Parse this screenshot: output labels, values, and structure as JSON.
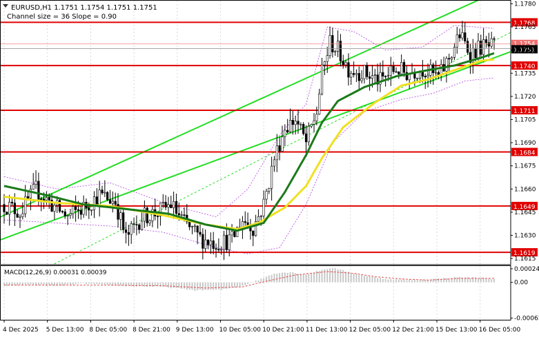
{
  "chart_data": {
    "type": "candlestick",
    "symbol_header": "EURUSD,H1  1.1751 1.1754 1.1751 1.1751",
    "channel_label": "Channel size = 36 Slope = 0.90",
    "price_ticks": [
      "1.1780",
      "1.1765",
      "1.1750",
      "1.1735",
      "1.1720",
      "1.1705",
      "1.1690",
      "1.1675",
      "1.1660",
      "1.1645",
      "1.1630",
      "1.1615"
    ],
    "price_range": [
      1.1611,
      1.1782
    ],
    "time_ticks": [
      "4 Dec 2025",
      "5 Dec 13:00",
      "8 Dec 05:00",
      "8 Dec 21:00",
      "9 Dec 13:00",
      "10 Dec 05:00",
      "10 Dec 21:00",
      "11 Dec 13:00",
      "12 Dec 05:00",
      "12 Dec 21:00",
      "15 Dec 13:00",
      "16 Dec 05:00"
    ],
    "levels": [
      {
        "label": "1.1768",
        "value": 1.1768
      },
      {
        "label": "1.1740",
        "value": 1.174
      },
      {
        "label": "1.1711",
        "value": 1.1711
      },
      {
        "label": "1.1684",
        "value": 1.1684
      },
      {
        "label": "1.1649",
        "value": 1.1649
      },
      {
        "label": "1.1619",
        "value": 1.1619
      }
    ],
    "current_price": {
      "label": "1.1751",
      "value": 1.1751
    },
    "ask_price": {
      "label": "1.1754",
      "value": 1.1754
    },
    "price_anchors": [
      [
        0,
        1.165
      ],
      [
        6,
        1.1645
      ],
      [
        12,
        1.166
      ],
      [
        18,
        1.165
      ],
      [
        24,
        1.1642
      ],
      [
        30,
        1.1648
      ],
      [
        36,
        1.1656
      ],
      [
        42,
        1.1652
      ],
      [
        46,
        1.1628
      ],
      [
        52,
        1.1642
      ],
      [
        58,
        1.1645
      ],
      [
        63,
        1.165
      ],
      [
        68,
        1.1638
      ],
      [
        74,
        1.1628
      ],
      [
        80,
        1.1625
      ],
      [
        86,
        1.1627
      ],
      [
        90,
        1.164
      ],
      [
        94,
        1.1635
      ],
      [
        98,
        1.165
      ],
      [
        102,
        1.168
      ],
      [
        106,
        1.17
      ],
      [
        110,
        1.1705
      ],
      [
        114,
        1.169
      ],
      [
        118,
        1.171
      ],
      [
        120,
        1.1735
      ],
      [
        123,
        1.1755
      ],
      [
        126,
        1.175
      ],
      [
        130,
        1.1738
      ],
      [
        136,
        1.1735
      ],
      [
        142,
        1.173
      ],
      [
        148,
        1.1738
      ],
      [
        152,
        1.1735
      ],
      [
        158,
        1.1738
      ],
      [
        164,
        1.1732
      ],
      [
        168,
        1.1745
      ],
      [
        172,
        1.176
      ],
      [
        176,
        1.1748
      ],
      [
        180,
        1.1752
      ],
      [
        185,
        1.1752
      ]
    ],
    "ma_slow_anchors": [
      [
        0,
        1.1662
      ],
      [
        16,
        1.1656
      ],
      [
        30,
        1.165
      ],
      [
        46,
        1.1647
      ],
      [
        62,
        1.1644
      ],
      [
        76,
        1.1637
      ],
      [
        88,
        1.1633
      ],
      [
        98,
        1.1638
      ],
      [
        106,
        1.1658
      ],
      [
        114,
        1.1682
      ],
      [
        120,
        1.1703
      ],
      [
        126,
        1.1717
      ],
      [
        136,
        1.1726
      ],
      [
        148,
        1.1733
      ],
      [
        160,
        1.1737
      ],
      [
        170,
        1.174
      ],
      [
        180,
        1.1745
      ],
      [
        185,
        1.1748
      ]
    ],
    "ma_fast_anchors": [
      [
        0,
        1.1655
      ],
      [
        20,
        1.1651
      ],
      [
        40,
        1.1649
      ],
      [
        60,
        1.1643
      ],
      [
        76,
        1.1637
      ],
      [
        88,
        1.1634
      ],
      [
        96,
        1.1638
      ],
      [
        106,
        1.1648
      ],
      [
        114,
        1.1662
      ],
      [
        120,
        1.168
      ],
      [
        128,
        1.17
      ],
      [
        140,
        1.1716
      ],
      [
        150,
        1.1727
      ],
      [
        160,
        1.1731
      ],
      [
        170,
        1.1737
      ],
      [
        180,
        1.1743
      ],
      [
        185,
        1.1744
      ]
    ],
    "envelope_upper_anchors": [
      [
        0,
        1.1668
      ],
      [
        20,
        1.166
      ],
      [
        40,
        1.1664
      ],
      [
        62,
        1.165
      ],
      [
        80,
        1.1642
      ],
      [
        92,
        1.166
      ],
      [
        104,
        1.1695
      ],
      [
        114,
        1.1715
      ],
      [
        122,
        1.1765
      ],
      [
        132,
        1.1762
      ],
      [
        144,
        1.175
      ],
      [
        158,
        1.1752
      ],
      [
        170,
        1.1766
      ],
      [
        185,
        1.1764
      ]
    ],
    "envelope_lower_anchors": [
      [
        0,
        1.164
      ],
      [
        20,
        1.1638
      ],
      [
        40,
        1.1636
      ],
      [
        60,
        1.1632
      ],
      [
        80,
        1.1622
      ],
      [
        92,
        1.1618
      ],
      [
        104,
        1.1622
      ],
      [
        114,
        1.165
      ],
      [
        124,
        1.169
      ],
      [
        136,
        1.171
      ],
      [
        150,
        1.1718
      ],
      [
        162,
        1.1722
      ],
      [
        174,
        1.173
      ],
      [
        185,
        1.1732
      ]
    ],
    "channel": {
      "upper_start": [
        0,
        1.1643
      ],
      "upper_end": [
        185,
        1.1787
      ],
      "mid_start": [
        0,
        1.1595
      ],
      "mid_end": [
        185,
        1.1756
      ],
      "lower_start": [
        0,
        1.1628
      ],
      "lower_end": [
        185,
        1.1745
      ]
    },
    "candles_count": 186,
    "indicator": {
      "label": "MACD(12,26,9) 0.00031 0.00039",
      "ticks": [
        "0.00024",
        "0.00",
        "-0.00063"
      ],
      "range": [
        -0.00066,
        0.0003
      ],
      "hist_anchors": [
        [
          0,
          -6e-05
        ],
        [
          10,
          -4e-05
        ],
        [
          20,
          -6e-05
        ],
        [
          30,
          -2e-05
        ],
        [
          40,
          -5e-05
        ],
        [
          50,
          -7e-05
        ],
        [
          60,
          -8e-05
        ],
        [
          72,
          -0.00014
        ],
        [
          82,
          -0.00013
        ],
        [
          90,
          -6e-05
        ],
        [
          96,
          4e-05
        ],
        [
          102,
          0.00016
        ],
        [
          108,
          0.00018
        ],
        [
          114,
          0.00014
        ],
        [
          120,
          0.00022
        ],
        [
          124,
          0.00026
        ],
        [
          130,
          0.00018
        ],
        [
          138,
          0.0001
        ],
        [
          146,
          5e-05
        ],
        [
          156,
          4e-05
        ],
        [
          166,
          7e-05
        ],
        [
          172,
          9e-05
        ],
        [
          180,
          8e-05
        ],
        [
          185,
          6e-05
        ]
      ],
      "signal_anchors": [
        [
          0,
          -5e-05
        ],
        [
          20,
          -5e-05
        ],
        [
          40,
          -5e-05
        ],
        [
          60,
          -6e-05
        ],
        [
          76,
          -0.0001
        ],
        [
          90,
          -8e-05
        ],
        [
          100,
          3e-05
        ],
        [
          110,
          0.00013
        ],
        [
          122,
          0.00019
        ],
        [
          132,
          0.00016
        ],
        [
          140,
          0.0001
        ],
        [
          150,
          6e-05
        ],
        [
          160,
          4e-05
        ],
        [
          172,
          7e-05
        ],
        [
          185,
          7e-05
        ]
      ]
    },
    "colors": {
      "candle_up": "#000000",
      "candle_down": "#000000",
      "level": "#e00000",
      "ma_slow": "#1a7a1a",
      "ma_fast": "#f0e020",
      "channel": "#22dd22",
      "envelope": "#b040e0",
      "macd_hist": "#c8c8c8",
      "macd_signal": "#e05050",
      "grid": "#d8d8d8"
    }
  }
}
